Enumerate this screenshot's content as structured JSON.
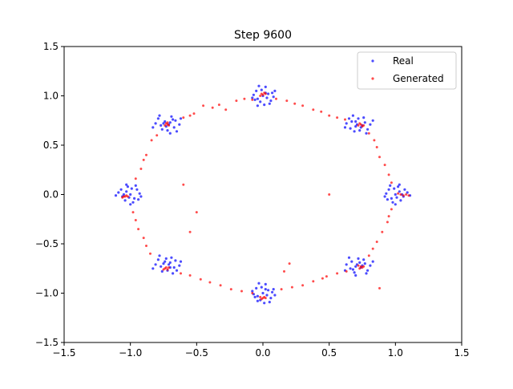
{
  "chart_data": {
    "type": "scatter",
    "title": "Step 9600",
    "xlabel": "",
    "ylabel": "",
    "xlim": [
      -1.5,
      1.5
    ],
    "ylim": [
      -1.5,
      1.5
    ],
    "xticks": [
      "−1.5",
      "−1.0",
      "−0.5",
      "0.0",
      "0.5",
      "1.0",
      "1.5"
    ],
    "yticks": [
      "−1.5",
      "−1.0",
      "−0.5",
      "0.0",
      "0.5",
      "1.0",
      "1.5"
    ],
    "grid": false,
    "legend_position": "top-right",
    "series": [
      {
        "name": "Real",
        "color": "#0000ff",
        "points": [
          [
            0.0,
            1.0
          ],
          [
            0.04,
            1.02
          ],
          [
            -0.04,
            0.97
          ],
          [
            0.06,
            0.95
          ],
          [
            -0.05,
            1.05
          ],
          [
            0.02,
            1.09
          ],
          [
            -0.02,
            0.94
          ],
          [
            0.07,
            1.03
          ],
          [
            -0.07,
            1.01
          ],
          [
            0.03,
            0.98
          ],
          [
            -0.01,
            1.06
          ],
          [
            0.05,
            0.92
          ],
          [
            -0.06,
            0.96
          ],
          [
            0.08,
            0.99
          ],
          [
            -0.03,
            1.1
          ],
          [
            0.01,
            0.91
          ],
          [
            0.09,
            1.05
          ],
          [
            -0.08,
            0.98
          ],
          [
            0.02,
            1.03
          ],
          [
            -0.04,
            0.9
          ],
          [
            0.71,
            0.71
          ],
          [
            0.74,
            0.68
          ],
          [
            0.67,
            0.74
          ],
          [
            0.77,
            0.73
          ],
          [
            0.66,
            0.67
          ],
          [
            0.72,
            0.77
          ],
          [
            0.79,
            0.66
          ],
          [
            0.69,
            0.64
          ],
          [
            0.63,
            0.72
          ],
          [
            0.76,
            0.78
          ],
          [
            0.81,
            0.71
          ],
          [
            0.7,
            0.69
          ],
          [
            0.65,
            0.77
          ],
          [
            0.78,
            0.62
          ],
          [
            0.73,
            0.65
          ],
          [
            0.68,
            0.8
          ],
          [
            0.83,
            0.75
          ],
          [
            0.62,
            0.68
          ],
          [
            0.75,
            0.7
          ],
          [
            0.7,
            0.74
          ],
          [
            1.0,
            0.0
          ],
          [
            1.03,
            0.03
          ],
          [
            0.97,
            -0.04
          ],
          [
            1.06,
            -0.02
          ],
          [
            0.95,
            0.05
          ],
          [
            1.02,
            0.08
          ],
          [
            0.98,
            -0.08
          ],
          [
            1.09,
            0.02
          ],
          [
            0.93,
            0.01
          ],
          [
            1.04,
            -0.06
          ],
          [
            0.99,
            0.06
          ],
          [
            1.07,
            0.05
          ],
          [
            0.94,
            -0.05
          ],
          [
            1.01,
            -0.03
          ],
          [
            1.11,
            -0.01
          ],
          [
            0.96,
            0.09
          ],
          [
            1.05,
            0.0
          ],
          [
            0.92,
            -0.02
          ],
          [
            1.0,
            -0.1
          ],
          [
            1.03,
            0.1
          ],
          [
            0.71,
            -0.71
          ],
          [
            0.74,
            -0.74
          ],
          [
            0.67,
            -0.68
          ],
          [
            0.77,
            -0.7
          ],
          [
            0.66,
            -0.75
          ],
          [
            0.72,
            -0.65
          ],
          [
            0.79,
            -0.77
          ],
          [
            0.69,
            -0.79
          ],
          [
            0.63,
            -0.71
          ],
          [
            0.76,
            -0.66
          ],
          [
            0.81,
            -0.72
          ],
          [
            0.7,
            -0.73
          ],
          [
            0.65,
            -0.64
          ],
          [
            0.78,
            -0.8
          ],
          [
            0.73,
            -0.69
          ],
          [
            0.68,
            -0.76
          ],
          [
            0.83,
            -0.68
          ],
          [
            0.62,
            -0.77
          ],
          [
            0.75,
            -0.72
          ],
          [
            0.7,
            -0.82
          ],
          [
            0.0,
            -1.0
          ],
          [
            0.04,
            -0.97
          ],
          [
            -0.04,
            -1.03
          ],
          [
            0.06,
            -1.05
          ],
          [
            -0.05,
            -0.95
          ],
          [
            0.02,
            -0.91
          ],
          [
            -0.02,
            -1.07
          ],
          [
            0.07,
            -0.99
          ],
          [
            -0.07,
            -1.01
          ],
          [
            0.03,
            -1.02
          ],
          [
            -0.01,
            -0.94
          ],
          [
            0.05,
            -1.09
          ],
          [
            -0.06,
            -1.04
          ],
          [
            0.08,
            -0.96
          ],
          [
            -0.03,
            -0.9
          ],
          [
            0.01,
            -1.1
          ],
          [
            0.09,
            -1.02
          ],
          [
            -0.08,
            -0.98
          ],
          [
            0.02,
            -0.96
          ],
          [
            -0.04,
            -1.08
          ],
          [
            -0.71,
            -0.71
          ],
          [
            -0.74,
            -0.68
          ],
          [
            -0.67,
            -0.74
          ],
          [
            -0.77,
            -0.73
          ],
          [
            -0.66,
            -0.67
          ],
          [
            -0.72,
            -0.77
          ],
          [
            -0.79,
            -0.66
          ],
          [
            -0.69,
            -0.64
          ],
          [
            -0.63,
            -0.72
          ],
          [
            -0.76,
            -0.78
          ],
          [
            -0.81,
            -0.71
          ],
          [
            -0.7,
            -0.69
          ],
          [
            -0.65,
            -0.77
          ],
          [
            -0.78,
            -0.62
          ],
          [
            -0.73,
            -0.65
          ],
          [
            -0.68,
            -0.8
          ],
          [
            -0.83,
            -0.75
          ],
          [
            -0.62,
            -0.68
          ],
          [
            -0.75,
            -0.7
          ],
          [
            -0.7,
            -0.74
          ],
          [
            -1.0,
            0.0
          ],
          [
            -1.03,
            0.03
          ],
          [
            -0.97,
            -0.04
          ],
          [
            -1.06,
            -0.02
          ],
          [
            -0.95,
            0.05
          ],
          [
            -1.02,
            0.08
          ],
          [
            -0.98,
            -0.08
          ],
          [
            -1.09,
            0.02
          ],
          [
            -0.93,
            0.01
          ],
          [
            -1.04,
            -0.06
          ],
          [
            -0.99,
            0.06
          ],
          [
            -1.07,
            0.05
          ],
          [
            -0.94,
            -0.05
          ],
          [
            -1.01,
            -0.03
          ],
          [
            -1.11,
            -0.01
          ],
          [
            -0.96,
            0.09
          ],
          [
            -1.05,
            0.0
          ],
          [
            -0.92,
            -0.02
          ],
          [
            -1.0,
            -0.1
          ],
          [
            -1.03,
            0.1
          ],
          [
            -0.71,
            0.71
          ],
          [
            -0.74,
            0.74
          ],
          [
            -0.67,
            0.68
          ],
          [
            -0.77,
            0.7
          ],
          [
            -0.66,
            0.75
          ],
          [
            -0.72,
            0.65
          ],
          [
            -0.79,
            0.77
          ],
          [
            -0.69,
            0.79
          ],
          [
            -0.63,
            0.71
          ],
          [
            -0.76,
            0.66
          ],
          [
            -0.81,
            0.72
          ],
          [
            -0.7,
            0.73
          ],
          [
            -0.65,
            0.64
          ],
          [
            -0.78,
            0.8
          ],
          [
            -0.73,
            0.69
          ],
          [
            -0.68,
            0.76
          ],
          [
            -0.83,
            0.68
          ],
          [
            -0.62,
            0.77
          ],
          [
            -0.75,
            0.72
          ],
          [
            -0.7,
            0.62
          ]
        ]
      },
      {
        "name": "Generated",
        "color": "#ff0000",
        "points": [
          [
            -0.01,
            1.02
          ],
          [
            0.0,
            1.01
          ],
          [
            0.01,
            1.03
          ],
          [
            -0.02,
            1.0
          ],
          [
            0.02,
            1.02
          ],
          [
            0.74,
            0.71
          ],
          [
            0.76,
            0.7
          ],
          [
            0.73,
            0.72
          ],
          [
            0.75,
            0.69
          ],
          [
            0.72,
            0.7
          ],
          [
            1.04,
            0.0
          ],
          [
            1.06,
            -0.01
          ],
          [
            1.08,
            0.0
          ],
          [
            1.02,
            0.01
          ],
          [
            1.1,
            -0.01
          ],
          [
            0.74,
            -0.73
          ],
          [
            0.75,
            -0.74
          ],
          [
            0.72,
            -0.72
          ],
          [
            0.76,
            -0.73
          ],
          [
            0.73,
            -0.75
          ],
          [
            0.0,
            -1.05
          ],
          [
            0.01,
            -1.04
          ],
          [
            -0.01,
            -1.06
          ],
          [
            0.02,
            -1.05
          ],
          [
            -0.02,
            -1.04
          ],
          [
            -0.73,
            -0.74
          ],
          [
            -0.72,
            -0.76
          ],
          [
            -0.74,
            -0.75
          ],
          [
            -0.71,
            -0.74
          ],
          [
            -0.75,
            -0.76
          ],
          [
            -1.05,
            -0.02
          ],
          [
            -1.03,
            -0.01
          ],
          [
            -1.06,
            -0.03
          ],
          [
            -1.04,
            -0.02
          ],
          [
            -1.02,
            -0.02
          ],
          [
            -0.72,
            0.71
          ],
          [
            -0.73,
            0.72
          ],
          [
            -0.71,
            0.7
          ],
          [
            -0.74,
            0.7
          ],
          [
            -0.72,
            0.73
          ],
          [
            -0.45,
            0.9
          ],
          [
            -0.38,
            0.88
          ],
          [
            -0.33,
            0.91
          ],
          [
            -0.28,
            0.86
          ],
          [
            -0.2,
            0.95
          ],
          [
            -0.14,
            0.97
          ],
          [
            -0.08,
            0.96
          ],
          [
            0.1,
            0.97
          ],
          [
            0.18,
            0.95
          ],
          [
            0.24,
            0.92
          ],
          [
            0.3,
            0.9
          ],
          [
            0.38,
            0.86
          ],
          [
            0.44,
            0.84
          ],
          [
            0.5,
            0.8
          ],
          [
            0.56,
            0.78
          ],
          [
            0.62,
            0.76
          ],
          [
            0.8,
            0.62
          ],
          [
            0.84,
            0.55
          ],
          [
            0.86,
            0.48
          ],
          [
            0.88,
            0.38
          ],
          [
            0.92,
            0.3
          ],
          [
            0.95,
            0.2
          ],
          [
            0.97,
            0.12
          ],
          [
            0.97,
            -0.15
          ],
          [
            0.95,
            -0.22
          ],
          [
            0.94,
            -0.28
          ],
          [
            0.9,
            -0.38
          ],
          [
            0.86,
            -0.48
          ],
          [
            0.83,
            -0.55
          ],
          [
            0.8,
            -0.62
          ],
          [
            0.63,
            -0.78
          ],
          [
            0.56,
            -0.8
          ],
          [
            0.48,
            -0.83
          ],
          [
            0.45,
            -0.85
          ],
          [
            0.38,
            -0.88
          ],
          [
            0.3,
            -0.92
          ],
          [
            0.22,
            -0.94
          ],
          [
            0.14,
            -0.96
          ],
          [
            -0.08,
            -1.0
          ],
          [
            -0.16,
            -0.98
          ],
          [
            -0.24,
            -0.96
          ],
          [
            -0.32,
            -0.92
          ],
          [
            -0.4,
            -0.89
          ],
          [
            -0.47,
            -0.86
          ],
          [
            -0.55,
            -0.82
          ],
          [
            -0.62,
            -0.8
          ],
          [
            -0.85,
            -0.6
          ],
          [
            -0.88,
            -0.52
          ],
          [
            -0.9,
            -0.44
          ],
          [
            -0.94,
            -0.35
          ],
          [
            -0.96,
            -0.26
          ],
          [
            -0.98,
            -0.18
          ],
          [
            -0.96,
            0.16
          ],
          [
            -0.92,
            0.26
          ],
          [
            -0.9,
            0.35
          ],
          [
            -0.88,
            0.4
          ],
          [
            -0.84,
            0.55
          ],
          [
            -0.8,
            0.6
          ],
          [
            -0.6,
            0.78
          ],
          [
            -0.55,
            0.8
          ],
          [
            -0.52,
            0.82
          ],
          [
            0.2,
            -0.7
          ],
          [
            -0.55,
            -0.38
          ],
          [
            -0.6,
            0.1
          ],
          [
            0.5,
            0.0
          ],
          [
            0.16,
            -0.78
          ],
          [
            0.88,
            -0.95
          ],
          [
            -0.5,
            -0.18
          ]
        ]
      }
    ]
  }
}
